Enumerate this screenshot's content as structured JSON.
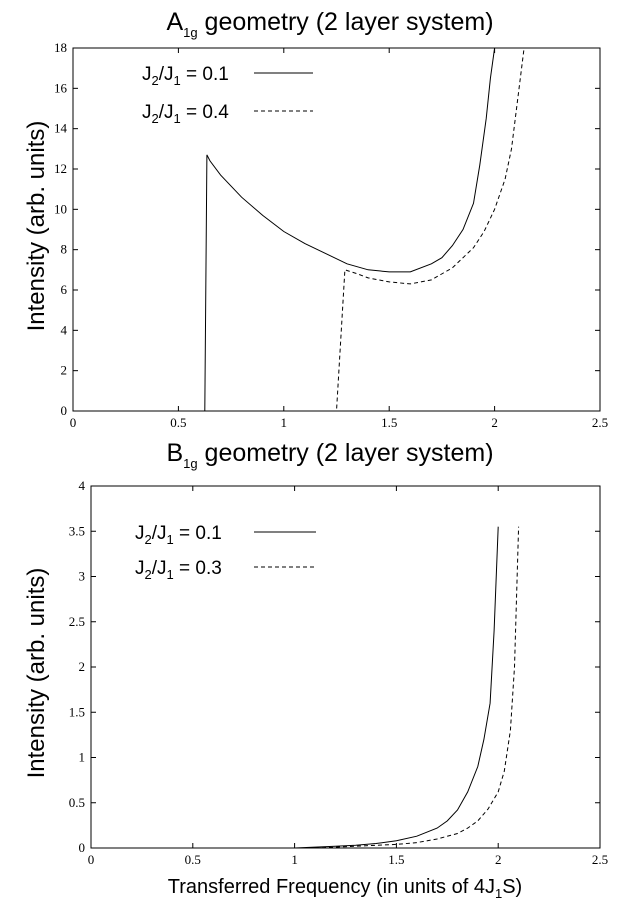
{
  "chart_data": [
    {
      "type": "line",
      "title": {
        "base": "A",
        "sub": "1g",
        "rest": " geometry (2 layer system)"
      },
      "xlabel": "",
      "ylabel": "Intensity (arb. units)",
      "xlim": [
        0,
        2.5
      ],
      "ylim": [
        0,
        18
      ],
      "xticks": [
        "0",
        "0.5",
        "1",
        "1.5",
        "2",
        "2.5"
      ],
      "yticks": [
        "0",
        "2",
        "4",
        "6",
        "8",
        "10",
        "12",
        "14",
        "16",
        "18"
      ],
      "grid": false,
      "legend_position": "top-left",
      "series": [
        {
          "name": "J2/J1 = 0.1",
          "legend": {
            "j": "J",
            "s1": "2",
            "slash": "/J",
            "s2": "1",
            "rest": " = 0.1"
          },
          "style": "solid",
          "x": [
            0,
            0.625,
            0.635,
            0.65,
            0.7,
            0.8,
            0.9,
            1.0,
            1.1,
            1.2,
            1.3,
            1.4,
            1.5,
            1.6,
            1.7,
            1.75,
            1.8,
            1.85,
            1.9,
            1.93,
            1.96,
            1.98,
            2.0
          ],
          "y": [
            0,
            0,
            12.7,
            12.4,
            11.7,
            10.6,
            9.7,
            8.9,
            8.3,
            7.8,
            7.3,
            7.0,
            6.9,
            6.9,
            7.3,
            7.6,
            8.2,
            9.0,
            10.3,
            12.2,
            14.5,
            16.5,
            18
          ]
        },
        {
          "name": "J2/J1 = 0.4",
          "legend": {
            "j": "J",
            "s1": "2",
            "slash": "/J",
            "s2": "1",
            "rest": " = 0.4"
          },
          "style": "dashed",
          "x": [
            0,
            1.25,
            1.29,
            1.35,
            1.4,
            1.5,
            1.6,
            1.7,
            1.8,
            1.9,
            1.95,
            2.0,
            2.05,
            2.08,
            2.11,
            2.14
          ],
          "y": [
            0,
            0,
            7.0,
            6.8,
            6.6,
            6.4,
            6.3,
            6.5,
            7.1,
            8.1,
            8.9,
            10.0,
            11.5,
            13.0,
            15.5,
            18
          ]
        }
      ]
    },
    {
      "type": "line",
      "title": {
        "base": "B",
        "sub": "1g",
        "rest": " geometry (2 layer system)"
      },
      "xlabel": {
        "base": "Transferred Frequency (in units of 4J",
        "sub": "1",
        "rest": "S)"
      },
      "ylabel": "Intensity (arb. units)",
      "xlim": [
        0,
        2.5
      ],
      "ylim": [
        0,
        4
      ],
      "xticks": [
        "0",
        "0.5",
        "1",
        "1.5",
        "2",
        "2.5"
      ],
      "yticks": [
        "0",
        "0.5",
        "1",
        "1.5",
        "2",
        "2.5",
        "3",
        "3.5",
        "4"
      ],
      "grid": false,
      "legend_position": "top-left",
      "series": [
        {
          "name": "J2/J1 = 0.1",
          "legend": {
            "j": "J",
            "s1": "2",
            "slash": "/J",
            "s2": "1",
            "rest": " = 0.1"
          },
          "style": "solid",
          "x": [
            0,
            1.0,
            1.1,
            1.2,
            1.3,
            1.4,
            1.5,
            1.6,
            1.7,
            1.75,
            1.8,
            1.85,
            1.9,
            1.93,
            1.96,
            1.98,
            2.0
          ],
          "y": [
            0,
            0,
            0.01,
            0.02,
            0.03,
            0.05,
            0.08,
            0.13,
            0.22,
            0.3,
            0.42,
            0.62,
            0.9,
            1.2,
            1.6,
            2.4,
            3.55
          ]
        },
        {
          "name": "J2/J1 = 0.3",
          "legend": {
            "j": "J",
            "s1": "2",
            "slash": "/J",
            "s2": "1",
            "rest": " = 0.3"
          },
          "style": "dashed",
          "x": [
            0,
            1.1,
            1.2,
            1.3,
            1.4,
            1.5,
            1.6,
            1.7,
            1.8,
            1.85,
            1.9,
            1.95,
            2.0,
            2.03,
            2.06,
            2.08,
            2.1
          ],
          "y": [
            0,
            0,
            0.01,
            0.02,
            0.03,
            0.04,
            0.06,
            0.1,
            0.16,
            0.22,
            0.3,
            0.43,
            0.62,
            0.85,
            1.3,
            2.0,
            3.55
          ]
        }
      ]
    }
  ]
}
